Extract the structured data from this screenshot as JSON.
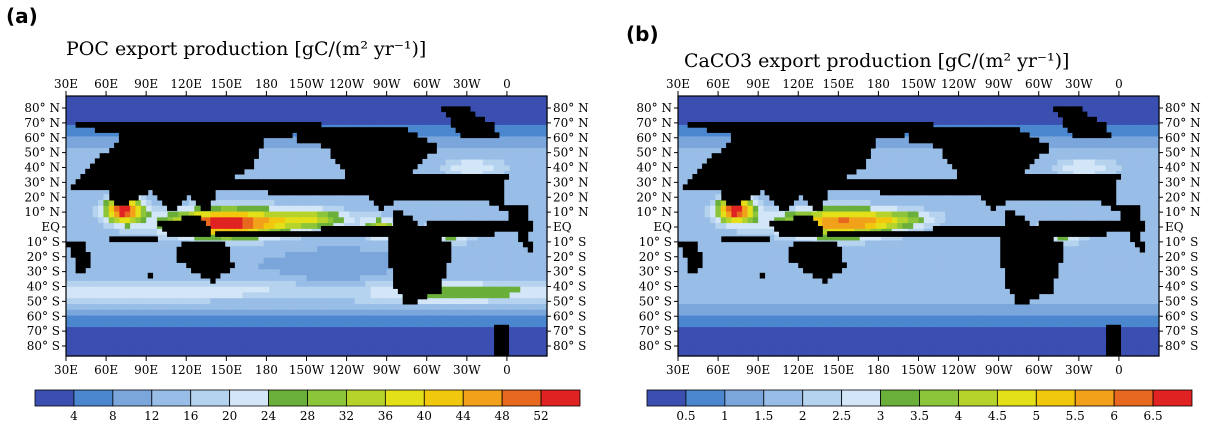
{
  "panels": [
    {
      "id": "a",
      "label": "(a)",
      "title": "POC export production [gC/(m² yr⁻¹)]",
      "colorbar_labels": [
        "4",
        "8",
        "12",
        "16",
        "20",
        "24",
        "28",
        "32",
        "36",
        "40",
        "44",
        "48",
        "52"
      ],
      "field": {
        "base": 3,
        "blobs": [
          {
            "lon": 150,
            "lat": 2,
            "rx": 45,
            "ry": 10,
            "v": 11
          },
          {
            "lon": 215,
            "lat": 5,
            "rx": 30,
            "ry": 7,
            "v": 5
          },
          {
            "lon": 265,
            "lat": -2,
            "rx": 12,
            "ry": 7,
            "v": 6
          },
          {
            "lon": 73,
            "lat": 11,
            "rx": 14,
            "ry": 9,
            "v": 11
          },
          {
            "lon": -42,
            "lat": -5,
            "rx": 20,
            "ry": 8,
            "v": 3.5
          },
          {
            "lon": -25,
            "lat": 40,
            "rx": 25,
            "ry": 7,
            "v": 3
          },
          {
            "lon": 95,
            "lat": -45,
            "rx": 140,
            "ry": 7,
            "v": 3
          },
          {
            "lon": 310,
            "lat": -47,
            "rx": 60,
            "ry": 8,
            "v": 3
          },
          {
            "lon": 230,
            "lat": -30,
            "rx": 25,
            "ry": 8,
            "v": -1
          }
        ]
      }
    },
    {
      "id": "b",
      "label": "(b)",
      "title": "CaCO3 export production [gC/(m² yr⁻¹)]",
      "colorbar_labels": [
        "0.5",
        "1",
        "1.5",
        "2",
        "2.5",
        "3",
        "3.5",
        "4",
        "4.5",
        "5",
        "5.5",
        "6",
        "6.5"
      ],
      "field": {
        "base": 3,
        "blobs": [
          {
            "lon": 150,
            "lat": 2,
            "rx": 45,
            "ry": 10,
            "v": 9
          },
          {
            "lon": 195,
            "lat": 5,
            "rx": 30,
            "ry": 6,
            "v": 3
          },
          {
            "lon": 73,
            "lat": 11,
            "rx": 14,
            "ry": 9,
            "v": 11
          },
          {
            "lon": -42,
            "lat": -5,
            "rx": 20,
            "ry": 8,
            "v": 3.5
          },
          {
            "lon": -25,
            "lat": 40,
            "rx": 25,
            "ry": 7,
            "v": 3
          },
          {
            "lon": 95,
            "lat": -45,
            "rx": 140,
            "ry": 7,
            "v": 1
          }
        ]
      }
    }
  ],
  "axes": {
    "lon_labels": [
      "30E",
      "60E",
      "90E",
      "120E",
      "150E",
      "180",
      "150W",
      "120W",
      "90W",
      "60W",
      "30W",
      "0"
    ],
    "lat_labels": [
      "80° N",
      "70° N",
      "60° N",
      "50° N",
      "40° N",
      "30° N",
      "20° N",
      "10° N",
      "EQ",
      "10° S",
      "20° S",
      "30° S",
      "40° S",
      "50° S",
      "60° S",
      "70° S",
      "80° S"
    ]
  },
  "colors": {
    "levels": [
      "#3b4fb0",
      "#4a87cf",
      "#7aa6dc",
      "#98bde6",
      "#b5d2ef",
      "#d2e6f8",
      "#6aaf3a",
      "#8cc43a",
      "#b5d32a",
      "#e3e01a",
      "#f2c80f",
      "#f2a21a",
      "#e8681f",
      "#e02222"
    ],
    "land": "#000000"
  }
}
